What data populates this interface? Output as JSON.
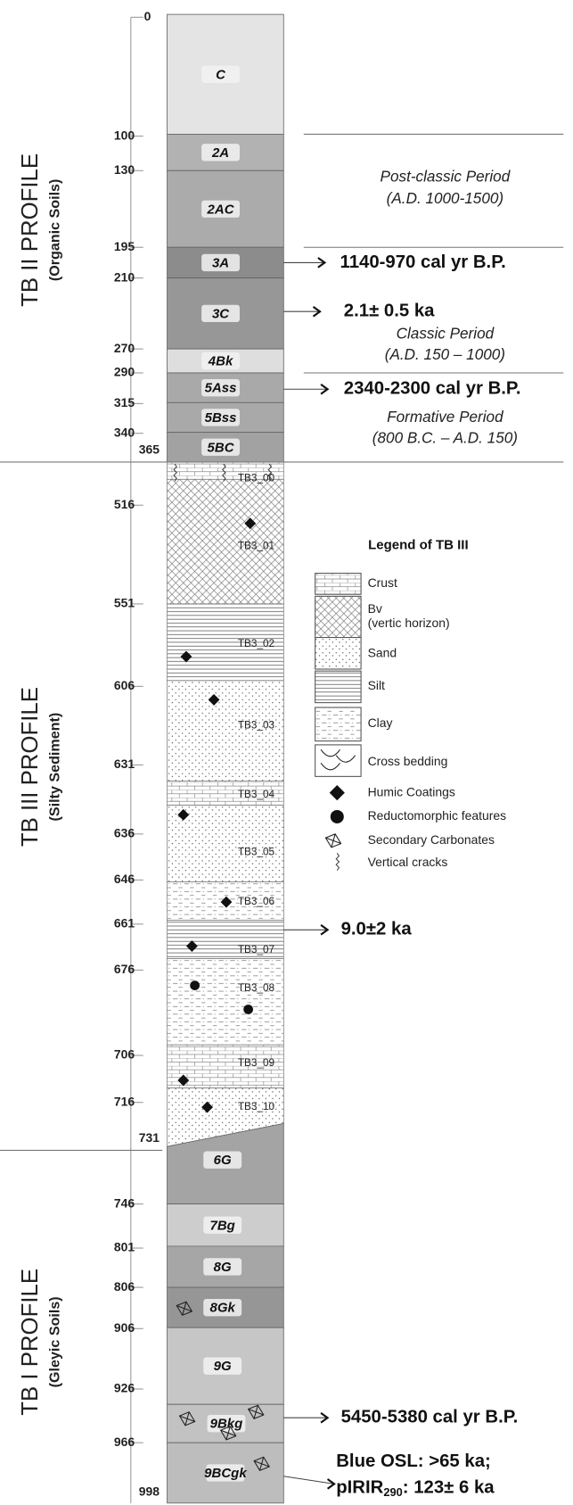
{
  "depth_labels": [
    "0",
    "100",
    "130",
    "195",
    "210",
    "270",
    "290",
    "315",
    "340",
    "365",
    "516",
    "551",
    "606",
    "631",
    "636",
    "646",
    "661",
    "676",
    "706",
    "716",
    "731",
    "746",
    "801",
    "806",
    "906",
    "926",
    "966",
    "998"
  ],
  "profiles": [
    {
      "title": "TB II PROFILE",
      "subtitle": "(Organic Soils)",
      "horizons": [
        "C",
        "2A",
        "2AC",
        "3A",
        "3C",
        "4Bk",
        "5Ass",
        "5Bss",
        "5BC"
      ]
    },
    {
      "title": "TB III PROFILE",
      "subtitle": "(Silty Sediment)",
      "horizons": [
        "TB3_00",
        "TB3_01",
        "TB3_02",
        "TB3_03",
        "TB3_04",
        "TB3_05",
        "TB3_06",
        "TB3_07",
        "TB3_08",
        "TB3_09",
        "TB3_10"
      ]
    },
    {
      "title": "TB I PROFILE",
      "subtitle": "(Gleyic Soils)",
      "horizons": [
        "6G",
        "7Bg",
        "8G",
        "8Gk",
        "9G",
        "9Bkg",
        "9BCgk"
      ]
    }
  ],
  "periods": [
    {
      "name": "Post-classic Period",
      "range": "(A.D. 1000-1500)"
    },
    {
      "name": "Classic Period",
      "range": "(A.D. 150 – 1000)"
    },
    {
      "name": "Formative Period",
      "range": "(800 B.C. – A.D. 150)"
    }
  ],
  "dates": [
    "1140-970 cal yr B.P.",
    "2.1± 0.5 ka",
    "2340-2300 cal yr B.P.",
    "9.0±2 ka",
    "5450-5380 cal yr B.P.",
    "Blue OSL: >65 ka;"
  ],
  "last_date": {
    "prefix": "pIRIR",
    "subscript": "290",
    "suffix": ": 123± 6 ka"
  },
  "legend": {
    "title": "Legend of TB III",
    "items": [
      "Crust",
      "Bv",
      "(vertic horizon)",
      "Sand",
      "Silt",
      "Clay",
      "Cross bedding",
      "Humic Coatings",
      "Reductomorphic features",
      "Secondary Carbonates",
      "Vertical cracks"
    ]
  }
}
